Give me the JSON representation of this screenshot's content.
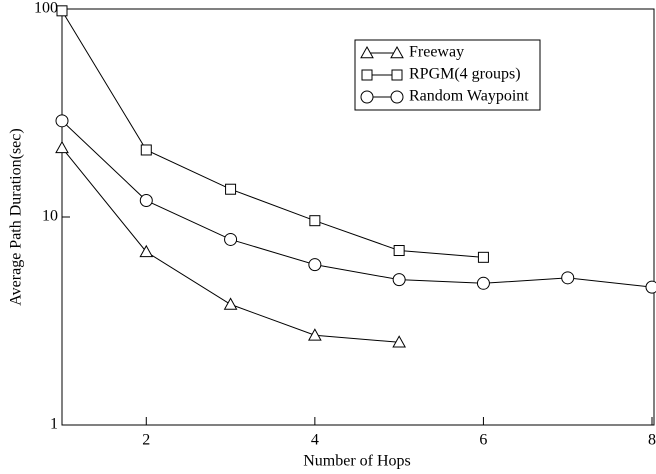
{
  "chart_data": {
    "type": "line",
    "x_label": "Number of Hops",
    "y_label": "Average Path Duration(sec)",
    "x": [
      1,
      2,
      3,
      4,
      5,
      6,
      7,
      8
    ],
    "series": [
      {
        "name": "Freeway",
        "color": "#000000",
        "marker": "triangle",
        "values": [
          21.5,
          6.8,
          3.8,
          2.7,
          2.5,
          null,
          null,
          null
        ]
      },
      {
        "name": "RPGM(4 groups)",
        "color": "#000000",
        "marker": "square",
        "values": [
          98,
          21,
          13.6,
          9.6,
          6.9,
          6.4,
          null,
          null
        ]
      },
      {
        "name": "Random Waypoint",
        "color": "#000000",
        "marker": "circle",
        "values": [
          29,
          12,
          7.8,
          5.9,
          5.0,
          4.8,
          5.1,
          4.6
        ]
      }
    ],
    "xlim": [
      1,
      8
    ],
    "xticks": [
      2,
      4,
      6,
      8
    ],
    "ylim": [
      1,
      100
    ],
    "yticks": [
      1,
      10,
      100
    ],
    "log_y": true,
    "grid": false,
    "legend": "upper right"
  }
}
